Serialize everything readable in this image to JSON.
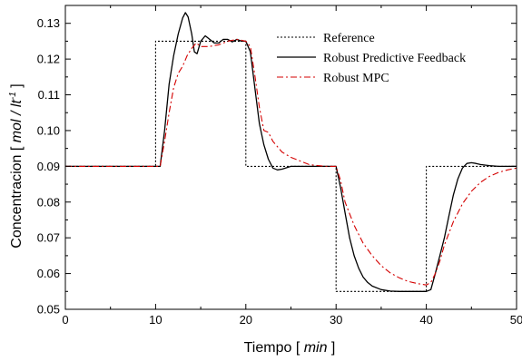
{
  "chart_data": {
    "type": "line",
    "title": "",
    "xlabel": {
      "prefix": "Tiempo [ ",
      "unit": "min",
      "suffix": " ]"
    },
    "ylabel": {
      "prefix": "Concentracion [ ",
      "unit": "mol / lt",
      "sup": "-1",
      "suffix": " ]"
    },
    "xlim": [
      0,
      50
    ],
    "ylim": [
      0.05,
      0.135
    ],
    "xticks": [
      0,
      10,
      20,
      30,
      40,
      50
    ],
    "yticks": [
      0.05,
      0.06,
      0.07,
      0.08,
      0.09,
      0.1,
      0.11,
      0.12,
      0.13
    ],
    "ytick_labels": [
      "0.05",
      "0.06",
      "0.07",
      "0.08",
      "0.09",
      "0.10",
      "0.11",
      "0.12",
      "0.13"
    ],
    "grid": false,
    "legend_position": "top-right",
    "series": [
      {
        "name": "Reference",
        "color": "#000000",
        "style": "dotted",
        "x": [
          0,
          10,
          10,
          20,
          20,
          30,
          30,
          40,
          40,
          50
        ],
        "y": [
          0.09,
          0.09,
          0.125,
          0.125,
          0.09,
          0.09,
          0.055,
          0.055,
          0.09,
          0.09
        ]
      },
      {
        "name": "Robust Predictive Feedback",
        "color": "#000000",
        "style": "solid",
        "x": [
          0,
          10.5,
          11.0,
          11.5,
          12.0,
          12.5,
          13.0,
          13.3,
          13.6,
          14.0,
          14.3,
          14.6,
          15.0,
          15.5,
          16.0,
          16.5,
          17.0,
          17.5,
          18.0,
          18.5,
          19.0,
          19.5,
          20.0,
          20.5,
          21.0,
          21.5,
          22.0,
          22.5,
          23.0,
          23.5,
          24.0,
          25.0,
          26.0,
          27.0,
          28.0,
          30.0,
          30.5,
          31.0,
          31.5,
          32.0,
          32.5,
          33.0,
          33.5,
          34.0,
          35.0,
          36.0,
          37.0,
          38.0,
          40.0,
          40.5,
          41.0,
          41.5,
          42.0,
          42.5,
          43.0,
          43.5,
          44.0,
          44.5,
          45.0,
          45.5,
          46.0,
          47.0,
          48.0,
          50.0
        ],
        "y": [
          0.09,
          0.09,
          0.1,
          0.113,
          0.121,
          0.127,
          0.1315,
          0.133,
          0.1318,
          0.127,
          0.122,
          0.1215,
          0.125,
          0.1265,
          0.1255,
          0.1245,
          0.1245,
          0.1255,
          0.1255,
          0.1248,
          0.1255,
          0.125,
          0.125,
          0.122,
          0.112,
          0.102,
          0.096,
          0.092,
          0.0895,
          0.089,
          0.0892,
          0.09,
          0.09,
          0.09,
          0.09,
          0.09,
          0.084,
          0.077,
          0.07,
          0.065,
          0.0615,
          0.059,
          0.0575,
          0.0565,
          0.0555,
          0.0551,
          0.055,
          0.055,
          0.055,
          0.0555,
          0.06,
          0.065,
          0.07,
          0.076,
          0.082,
          0.0865,
          0.0895,
          0.0908,
          0.091,
          0.0908,
          0.0905,
          0.0902,
          0.09,
          0.09
        ]
      },
      {
        "name": "Robust MPC",
        "color": "#d40000",
        "style": "dashdot",
        "x": [
          0,
          10.5,
          11.0,
          11.5,
          12.0,
          12.5,
          13.0,
          13.5,
          14.0,
          14.5,
          15.0,
          15.5,
          16.0,
          16.5,
          17.0,
          17.5,
          18.0,
          19.0,
          20.0,
          20.5,
          21.0,
          21.5,
          22.0,
          22.5,
          23.0,
          23.5,
          24.0,
          25.0,
          26.0,
          27.0,
          28.0,
          29.0,
          30.0,
          30.5,
          31.0,
          32.0,
          33.0,
          34.0,
          35.0,
          36.0,
          37.0,
          38.0,
          39.0,
          40.0,
          40.5,
          41.0,
          41.5,
          42.0,
          43.0,
          44.0,
          45.0,
          46.0,
          47.0,
          48.0,
          49.0,
          50.0
        ],
        "y": [
          0.09,
          0.09,
          0.097,
          0.105,
          0.112,
          0.116,
          0.118,
          0.121,
          0.123,
          0.1245,
          0.1235,
          0.1235,
          0.1235,
          0.1238,
          0.124,
          0.1245,
          0.125,
          0.1255,
          0.125,
          0.1235,
          0.1155,
          0.1065,
          0.1,
          0.0995,
          0.097,
          0.0955,
          0.094,
          0.0925,
          0.0915,
          0.0905,
          0.0902,
          0.09,
          0.09,
          0.086,
          0.08,
          0.0735,
          0.0685,
          0.065,
          0.0622,
          0.0602,
          0.0588,
          0.0578,
          0.0572,
          0.0568,
          0.0575,
          0.06,
          0.0635,
          0.068,
          0.0745,
          0.0795,
          0.083,
          0.0855,
          0.0872,
          0.0883,
          0.089,
          0.0895
        ]
      }
    ]
  }
}
